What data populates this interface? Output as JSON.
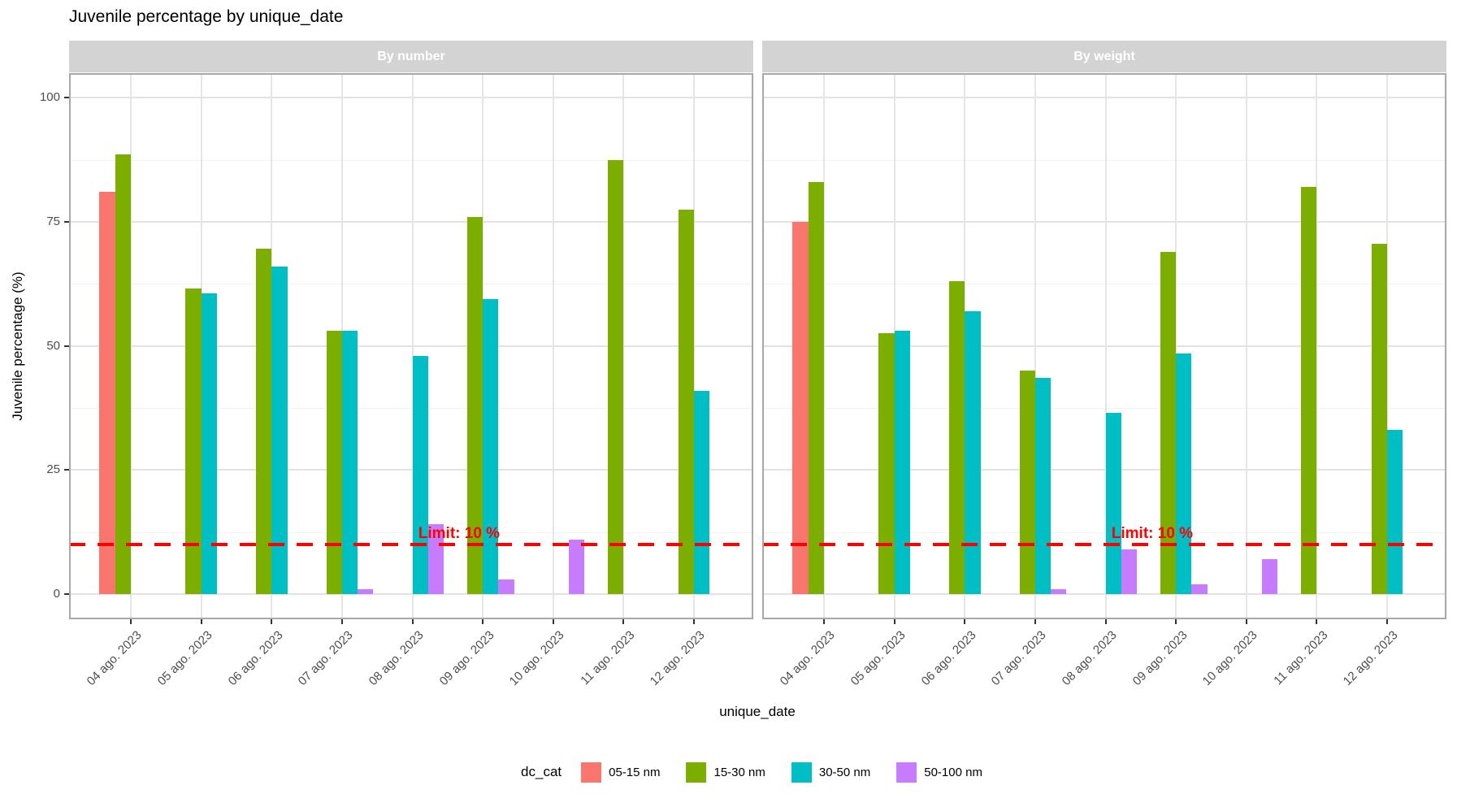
{
  "title": "Juvenile percentage by unique_date",
  "y_axis": {
    "title": "Juvenile percentage (%)",
    "ticks": [
      0,
      25,
      50,
      75,
      100
    ]
  },
  "x_axis": {
    "title": "unique_date"
  },
  "facets": [
    "By number",
    "By weight"
  ],
  "legend": {
    "title": "dc_cat",
    "items": [
      {
        "label": "05-15 nm",
        "color": "#F8766D"
      },
      {
        "label": "15-30 nm",
        "color": "#7CAE00"
      },
      {
        "label": "30-50 nm",
        "color": "#00BFC4"
      },
      {
        "label": "50-100 nm",
        "color": "#C77CFF"
      }
    ]
  },
  "limit_line": {
    "label": "Limit: 10 %",
    "value": 10,
    "color": "#FF0000"
  },
  "chart_data": {
    "type": "bar",
    "title": "Juvenile percentage by unique_date",
    "xlabel": "unique_date",
    "ylabel": "Juvenile percentage (%)",
    "ylim": [
      0,
      100
    ],
    "grid": true,
    "legend_position": "bottom",
    "categories": [
      "04 ago. 2023",
      "05 ago. 2023",
      "06 ago. 2023",
      "07 ago. 2023",
      "08 ago. 2023",
      "09 ago. 2023",
      "10 ago. 2023",
      "11 ago. 2023",
      "12 ago. 2023"
    ],
    "facets": [
      {
        "name": "By number",
        "series": [
          {
            "name": "05-15 nm",
            "values": [
              81,
              null,
              null,
              null,
              null,
              null,
              null,
              null,
              null
            ]
          },
          {
            "name": "15-30 nm",
            "values": [
              88.5,
              61.5,
              69.5,
              53,
              null,
              76,
              null,
              87.5,
              77.5
            ]
          },
          {
            "name": "30-50 nm",
            "values": [
              null,
              60.5,
              66,
              53,
              48,
              59.5,
              null,
              null,
              41
            ]
          },
          {
            "name": "50-100 nm",
            "values": [
              null,
              null,
              null,
              1,
              14,
              3,
              11,
              null,
              null
            ]
          }
        ]
      },
      {
        "name": "By weight",
        "series": [
          {
            "name": "05-15 nm",
            "values": [
              75,
              null,
              null,
              null,
              null,
              null,
              null,
              null,
              null
            ]
          },
          {
            "name": "15-30 nm",
            "values": [
              83,
              52.5,
              63,
              45,
              null,
              69,
              null,
              82,
              70.5
            ]
          },
          {
            "name": "30-50 nm",
            "values": [
              null,
              53,
              57,
              43.5,
              36.5,
              48.5,
              null,
              null,
              33
            ]
          },
          {
            "name": "50-100 nm",
            "values": [
              null,
              null,
              null,
              1,
              9,
              2,
              7,
              null,
              null
            ]
          }
        ]
      }
    ],
    "annotations": [
      {
        "text": "Limit: 10 %",
        "y": 10,
        "style": "dashed-red-line"
      }
    ]
  }
}
